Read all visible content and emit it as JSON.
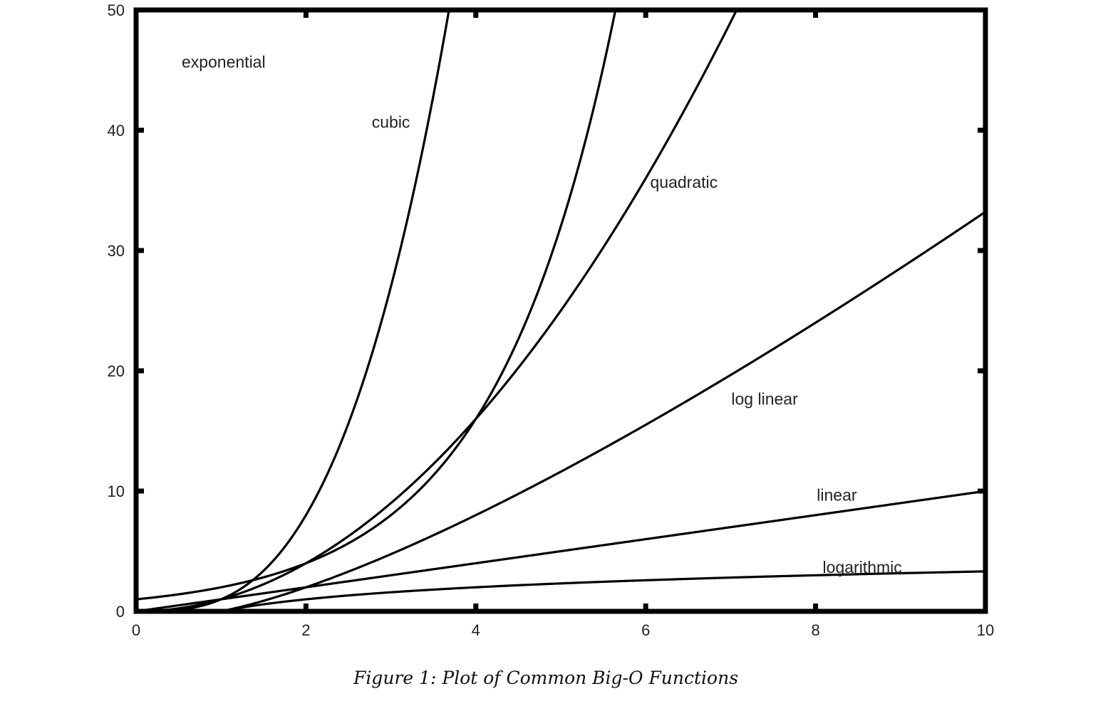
{
  "chart_data": {
    "type": "line",
    "title": "",
    "caption": "Figure 1: Plot of Common Big-O Functions",
    "xlabel": "",
    "ylabel": "",
    "xlim": [
      0,
      10
    ],
    "ylim": [
      0,
      50
    ],
    "x_ticks": [
      0,
      2,
      4,
      6,
      8,
      10
    ],
    "y_ticks": [
      0,
      10,
      20,
      30,
      40,
      50
    ],
    "grid": false,
    "legend": "none",
    "line_color": "#000000",
    "series": [
      {
        "name": "exponential",
        "function": "2^x",
        "x": [
          0,
          0.5,
          1,
          1.5,
          2,
          2.5,
          3,
          3.5,
          4,
          4.5,
          5,
          5.5,
          5.64
        ],
        "y": [
          1,
          1.41,
          2,
          2.83,
          4,
          5.66,
          8,
          11.31,
          16,
          22.63,
          32,
          45.25,
          50
        ],
        "label_at": [
          1.03,
          45.2
        ]
      },
      {
        "name": "cubic",
        "function": "x^3",
        "x": [
          0,
          0.5,
          1,
          1.5,
          2,
          2.5,
          3,
          3.25,
          3.5,
          3.68
        ],
        "y": [
          0,
          0.13,
          1,
          3.38,
          8,
          15.63,
          27,
          34.33,
          42.88,
          50
        ],
        "label_at": [
          3.0,
          40.2
        ]
      },
      {
        "name": "quadratic",
        "function": "x^2",
        "x": [
          0,
          1,
          2,
          3,
          4,
          5,
          6,
          7,
          7.07
        ],
        "y": [
          0,
          1,
          4,
          9,
          16,
          25,
          36,
          49,
          50
        ],
        "label_at": [
          6.45,
          35.2
        ]
      },
      {
        "name": "log linear",
        "function": "x log2 x",
        "x": [
          1,
          2,
          3,
          4,
          5,
          6,
          7,
          8,
          9,
          10
        ],
        "y": [
          0,
          2,
          4.75,
          8,
          11.61,
          15.51,
          19.65,
          24,
          28.53,
          33.22
        ],
        "label_at": [
          7.4,
          17.2
        ]
      },
      {
        "name": "linear",
        "function": "x",
        "x": [
          0,
          2,
          4,
          6,
          8,
          10
        ],
        "y": [
          0,
          2,
          4,
          6,
          8,
          10
        ],
        "label_at": [
          8.25,
          9.2
        ]
      },
      {
        "name": "logarithmic",
        "function": "log2 x",
        "x": [
          1,
          2,
          3,
          4,
          5,
          6,
          7,
          8,
          9,
          10
        ],
        "y": [
          0,
          1,
          1.58,
          2,
          2.32,
          2.58,
          2.81,
          3,
          3.17,
          3.32
        ],
        "label_at": [
          8.55,
          3.2
        ]
      }
    ]
  }
}
